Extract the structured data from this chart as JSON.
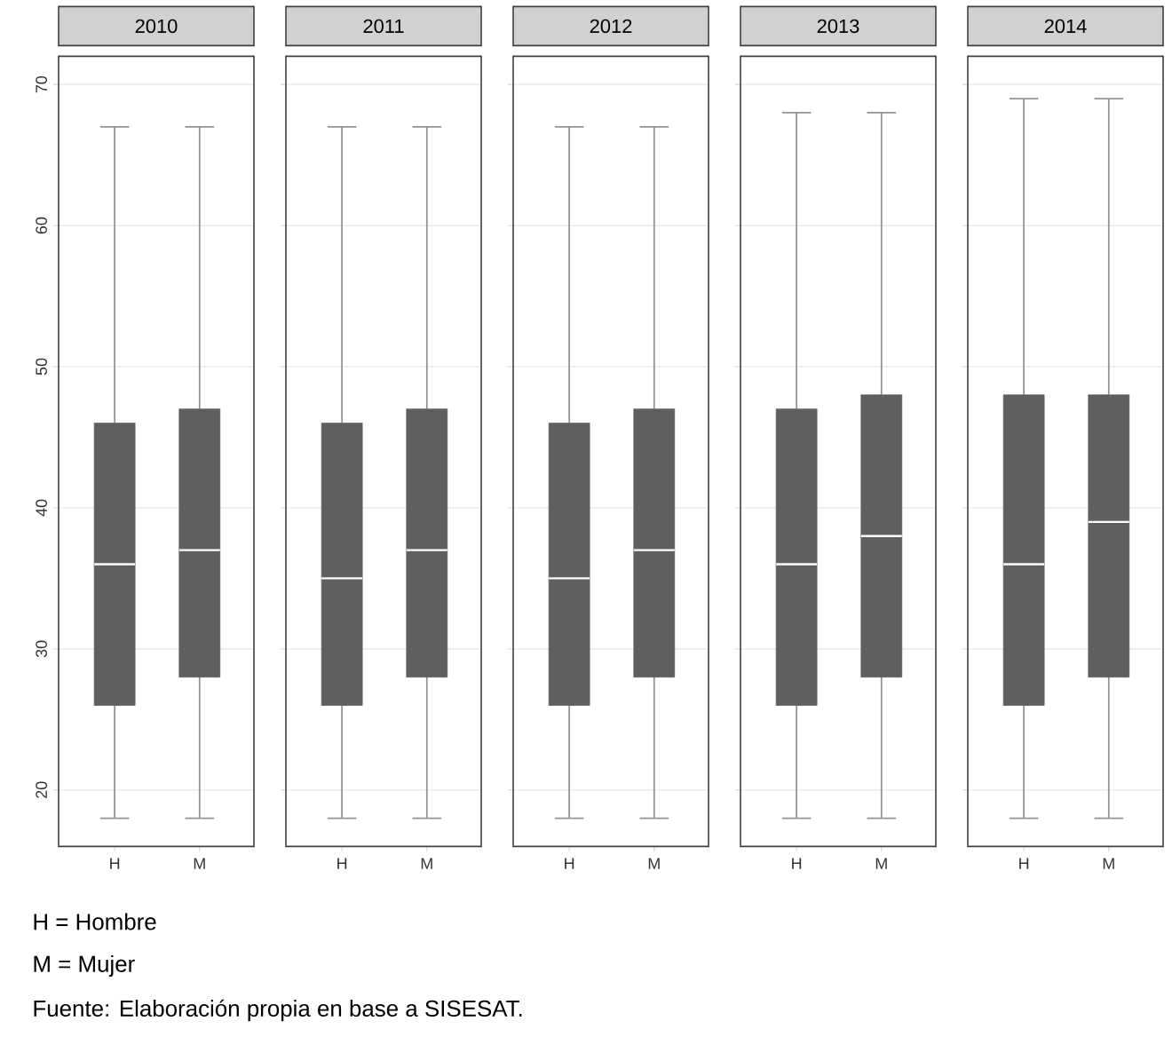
{
  "chart_data": [
    {
      "type": "box",
      "title": "2010",
      "categories": [
        "H",
        "M"
      ],
      "color": "#5f5f5f",
      "ylim": [
        16,
        72
      ],
      "yticks": [
        20,
        30,
        40,
        50,
        60,
        70
      ],
      "grid": "y",
      "boxes": [
        {
          "low": 18,
          "q1": 26,
          "median": 36,
          "q3": 46,
          "high": 67
        },
        {
          "low": 18,
          "q1": 28,
          "median": 37,
          "q3": 47,
          "high": 67
        }
      ],
      "annotations": [
        "H = Hombre",
        "M = Mujer",
        "Fuente: Elaboración propia en base a SISESAT."
      ]
    },
    {
      "type": "box",
      "title": "2011",
      "categories": [
        "H",
        "M"
      ],
      "color": "#5f5f5f",
      "ylim": [
        16,
        72
      ],
      "yticks": [
        20,
        30,
        40,
        50,
        60,
        70
      ],
      "grid": "y",
      "tick_labels": "x",
      "boxes": [
        {
          "low": 18,
          "q1": 26,
          "median": 35,
          "q3": 46,
          "high": 67
        },
        {
          "low": 18,
          "q1": 28,
          "median": 37,
          "q3": 47,
          "high": 67
        }
      ]
    },
    {
      "type": "box",
      "title": "2012",
      "categories": [
        "H",
        "M"
      ],
      "color": "#5f5f5f",
      "ylim": [
        16,
        72
      ],
      "yticks": [
        20,
        30,
        40,
        50,
        60,
        70
      ],
      "grid": "y",
      "tick_labels": "x",
      "boxes": [
        {
          "low": 18,
          "q1": 26,
          "median": 35,
          "q3": 46,
          "high": 67
        },
        {
          "low": 18,
          "q1": 28,
          "median": 37,
          "q3": 47,
          "high": 67
        }
      ]
    },
    {
      "type": "box",
      "title": "2013",
      "categories": [
        "H",
        "M"
      ],
      "color": "#5f5f5f",
      "ylim": [
        16,
        72
      ],
      "yticks": [
        20,
        30,
        40,
        50,
        60,
        70
      ],
      "grid": "y",
      "tick_labels": "x",
      "boxes": [
        {
          "low": 18,
          "q1": 26,
          "median": 36,
          "q3": 47,
          "high": 68
        },
        {
          "low": 18,
          "q1": 28,
          "median": 38,
          "q3": 48,
          "high": 68
        }
      ]
    },
    {
      "type": "box",
      "title": "2014",
      "categories": [
        "H",
        "M"
      ],
      "color": "#5f5f5f",
      "ylim": [
        16,
        72
      ],
      "yticks": [
        20,
        30,
        40,
        50,
        60,
        70
      ],
      "grid": "y",
      "tick_labels": "x",
      "boxes": [
        {
          "low": 18,
          "q1": 26,
          "median": 36,
          "q3": 48,
          "high": 69
        },
        {
          "low": 18,
          "q1": 28,
          "median": 39,
          "q3": 48,
          "high": 69
        }
      ]
    }
  ]
}
